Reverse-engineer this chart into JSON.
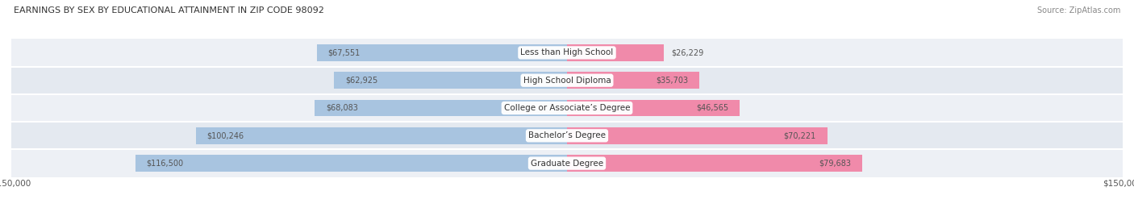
{
  "title": "EARNINGS BY SEX BY EDUCATIONAL ATTAINMENT IN ZIP CODE 98092",
  "source": "Source: ZipAtlas.com",
  "categories": [
    "Less than High School",
    "High School Diploma",
    "College or Associate’s Degree",
    "Bachelor’s Degree",
    "Graduate Degree"
  ],
  "male_values": [
    67551,
    62925,
    68083,
    100246,
    116500
  ],
  "female_values": [
    26229,
    35703,
    46565,
    70221,
    79683
  ],
  "male_color": "#a8c4e0",
  "female_color": "#f08aaa",
  "row_bg_colors": [
    "#edf0f5",
    "#e4e9f0",
    "#edf0f5",
    "#e4e9f0",
    "#edf0f5"
  ],
  "max_val": 150000,
  "label_color": "#555555",
  "title_color": "#333333",
  "background_color": "#ffffff"
}
